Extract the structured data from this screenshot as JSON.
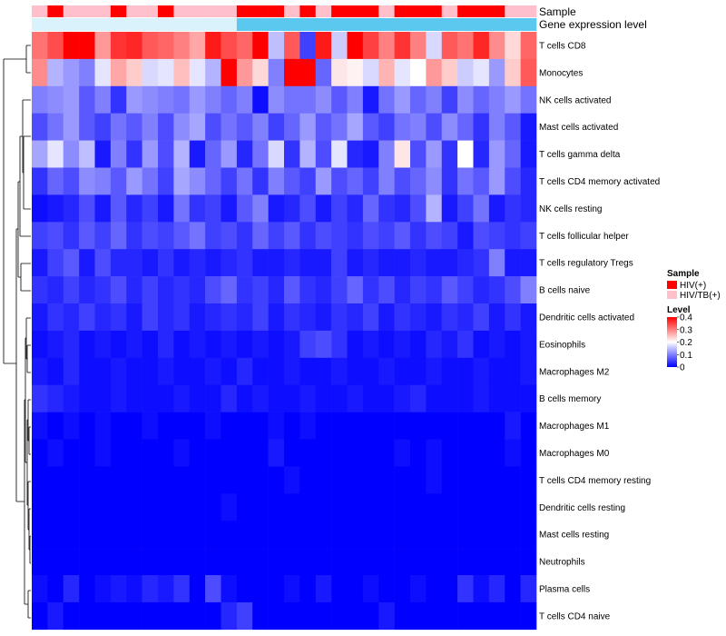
{
  "chart_data": {
    "type": "heatmap",
    "title": "",
    "n_samples": 32,
    "rows": [
      {
        "label": "T cells CD8",
        "values": [
          0.31,
          0.34,
          0.4,
          0.45,
          0.28,
          0.36,
          0.37,
          0.33,
          0.32,
          0.3,
          0.27,
          0.38,
          0.34,
          0.32,
          0.42,
          0.15,
          0.33,
          0.05,
          0.38,
          0.16,
          0.4,
          0.35,
          0.3,
          0.36,
          0.3,
          0.17,
          0.33,
          0.31,
          0.37,
          0.29,
          0.23,
          0.32
        ]
      },
      {
        "label": "Monocytes",
        "values": [
          0.29,
          0.14,
          0.12,
          0.1,
          0.18,
          0.27,
          0.24,
          0.17,
          0.18,
          0.25,
          0.18,
          0.14,
          0.4,
          0.28,
          0.23,
          0.1,
          0.42,
          0.4,
          0.08,
          0.22,
          0.21,
          0.17,
          0.26,
          0.18,
          0.2,
          0.28,
          0.24,
          0.16,
          0.18,
          0.12,
          0.24,
          0.33
        ]
      },
      {
        "label": "NK cells activated",
        "values": [
          0.1,
          0.11,
          0.12,
          0.07,
          0.1,
          0.04,
          0.12,
          0.11,
          0.1,
          0.09,
          0.12,
          0.1,
          0.08,
          0.1,
          0.01,
          0.11,
          0.09,
          0.09,
          0.11,
          0.07,
          0.1,
          0.02,
          0.09,
          0.12,
          0.08,
          0.1,
          0.05,
          0.11,
          0.08,
          0.1,
          0.12,
          0.09
        ]
      },
      {
        "label": "Mast cells activated",
        "values": [
          0.06,
          0.09,
          0.12,
          0.07,
          0.05,
          0.09,
          0.07,
          0.1,
          0.06,
          0.11,
          0.13,
          0.06,
          0.09,
          0.07,
          0.1,
          0.05,
          0.08,
          0.12,
          0.07,
          0.09,
          0.13,
          0.07,
          0.05,
          0.09,
          0.1,
          0.06,
          0.11,
          0.08,
          0.04,
          0.1,
          0.07,
          0.02
        ]
      },
      {
        "label": "T cells gamma delta",
        "values": [
          0.13,
          0.18,
          0.11,
          0.15,
          0.02,
          0.1,
          0.04,
          0.12,
          0.06,
          0.14,
          0.02,
          0.08,
          0.12,
          0.03,
          0.09,
          0.17,
          0.04,
          0.14,
          0.06,
          0.18,
          0.03,
          0.02,
          0.1,
          0.22,
          0.06,
          0.12,
          0.04,
          0.2,
          0.03,
          0.12,
          0.08,
          0.02
        ]
      },
      {
        "label": "T cells CD4 memory activated",
        "values": [
          0.04,
          0.08,
          0.06,
          0.11,
          0.1,
          0.07,
          0.12,
          0.09,
          0.05,
          0.13,
          0.11,
          0.08,
          0.05,
          0.09,
          0.04,
          0.1,
          0.07,
          0.05,
          0.12,
          0.06,
          0.08,
          0.05,
          0.1,
          0.06,
          0.08,
          0.11,
          0.04,
          0.09,
          0.07,
          0.12,
          0.06,
          0.03
        ]
      },
      {
        "label": "NK cells resting",
        "values": [
          0.01,
          0.02,
          0.03,
          0.06,
          0.02,
          0.07,
          0.03,
          0.05,
          0.02,
          0.09,
          0.04,
          0.05,
          0.02,
          0.07,
          0.1,
          0.02,
          0.03,
          0.06,
          0.02,
          0.05,
          0.03,
          0.08,
          0.04,
          0.03,
          0.06,
          0.14,
          0.02,
          0.05,
          0.09,
          0.02,
          0.04,
          0.03
        ]
      },
      {
        "label": "T cells follicular helper",
        "values": [
          0.05,
          0.06,
          0.04,
          0.07,
          0.05,
          0.08,
          0.04,
          0.06,
          0.05,
          0.07,
          0.09,
          0.05,
          0.06,
          0.04,
          0.08,
          0.05,
          0.07,
          0.04,
          0.06,
          0.05,
          0.04,
          0.06,
          0.05,
          0.07,
          0.04,
          0.06,
          0.05,
          0.02,
          0.06,
          0.05,
          0.04,
          0.05
        ]
      },
      {
        "label": "T cells regulatory  Tregs",
        "values": [
          0.02,
          0.05,
          0.07,
          0.02,
          0.06,
          0.03,
          0.03,
          0.02,
          0.04,
          0.02,
          0.03,
          0.02,
          0.03,
          0.04,
          0.02,
          0.02,
          0.03,
          0.02,
          0.02,
          0.05,
          0.02,
          0.03,
          0.02,
          0.02,
          0.03,
          0.02,
          0.02,
          0.03,
          0.04,
          0.1,
          0.02,
          0.02
        ]
      },
      {
        "label": "B cells naive",
        "values": [
          0.04,
          0.03,
          0.05,
          0.03,
          0.04,
          0.06,
          0.03,
          0.05,
          0.03,
          0.04,
          0.03,
          0.06,
          0.08,
          0.04,
          0.05,
          0.03,
          0.07,
          0.04,
          0.03,
          0.05,
          0.08,
          0.04,
          0.06,
          0.03,
          0.05,
          0.04,
          0.07,
          0.05,
          0.03,
          0.04,
          0.06,
          0.1
        ]
      },
      {
        "label": "Dendritic cells activated",
        "values": [
          0.02,
          0.04,
          0.03,
          0.05,
          0.03,
          0.04,
          0.02,
          0.05,
          0.03,
          0.04,
          0.02,
          0.03,
          0.04,
          0.03,
          0.05,
          0.02,
          0.04,
          0.03,
          0.02,
          0.04,
          0.03,
          0.05,
          0.02,
          0.04,
          0.03,
          0.02,
          0.04,
          0.03,
          0.05,
          0.02,
          0.04,
          0.02
        ]
      },
      {
        "label": "Eosinophils",
        "values": [
          0.01,
          0.02,
          0.03,
          0.01,
          0.02,
          0.01,
          0.02,
          0.01,
          0.03,
          0.01,
          0.02,
          0.01,
          0.02,
          0.01,
          0.02,
          0.01,
          0.02,
          0.05,
          0.06,
          0.04,
          0.01,
          0.02,
          0.01,
          0.02,
          0.01,
          0.03,
          0.02,
          0.04,
          0.01,
          0.02,
          0.01,
          0.02
        ]
      },
      {
        "label": "Macrophages M2",
        "values": [
          0.02,
          0.01,
          0.03,
          0.01,
          0.01,
          0.02,
          0.01,
          0.01,
          0.02,
          0.01,
          0.01,
          0.02,
          0.01,
          0.03,
          0.01,
          0.01,
          0.02,
          0.01,
          0.01,
          0.02,
          0.01,
          0.01,
          0.02,
          0.01,
          0.01,
          0.02,
          0.01,
          0.01,
          0.02,
          0.01,
          0.01,
          0.02
        ]
      },
      {
        "label": "B cells memory",
        "values": [
          0.04,
          0.03,
          0.02,
          0.01,
          0.01,
          0.02,
          0.01,
          0.01,
          0.01,
          0.02,
          0.01,
          0.01,
          0.03,
          0.01,
          0.02,
          0.01,
          0.01,
          0.02,
          0.01,
          0.01,
          0.02,
          0.01,
          0.01,
          0.02,
          0.03,
          0.01,
          0.01,
          0.01,
          0.02,
          0.01,
          0.01,
          0.01
        ]
      },
      {
        "label": "Macrophages M1",
        "values": [
          0.01,
          0.0,
          0.01,
          0.0,
          0.01,
          0.0,
          0.0,
          0.01,
          0.0,
          0.0,
          0.0,
          0.01,
          0.0,
          0.0,
          0.0,
          0.01,
          0.0,
          0.01,
          0.0,
          0.0,
          0.0,
          0.0,
          0.0,
          0.0,
          0.0,
          0.0,
          0.0,
          0.0,
          0.0,
          0.0,
          0.02,
          0.0
        ]
      },
      {
        "label": "Macrophages M0",
        "values": [
          0.0,
          0.01,
          0.0,
          0.0,
          0.01,
          0.0,
          0.0,
          0.0,
          0.0,
          0.01,
          0.0,
          0.0,
          0.0,
          0.0,
          0.0,
          0.02,
          0.0,
          0.0,
          0.0,
          0.0,
          0.0,
          0.0,
          0.0,
          0.01,
          0.0,
          0.01,
          0.0,
          0.0,
          0.0,
          0.0,
          0.01,
          0.0
        ]
      },
      {
        "label": "T cells CD4 memory resting",
        "values": [
          0.0,
          0.0,
          0.0,
          0.0,
          0.0,
          0.0,
          0.0,
          0.0,
          0.0,
          0.0,
          0.0,
          0.0,
          0.0,
          0.0,
          0.0,
          0.0,
          0.01,
          0.0,
          0.0,
          0.0,
          0.0,
          0.0,
          0.0,
          0.0,
          0.0,
          0.01,
          0.0,
          0.0,
          0.0,
          0.0,
          0.0,
          0.0
        ]
      },
      {
        "label": "Dendritic cells resting",
        "values": [
          0.0,
          0.0,
          0.0,
          0.0,
          0.0,
          0.0,
          0.0,
          0.0,
          0.0,
          0.0,
          0.0,
          0.0,
          0.01,
          0.0,
          0.0,
          0.0,
          0.0,
          0.0,
          0.0,
          0.0,
          0.0,
          0.0,
          0.0,
          0.0,
          0.0,
          0.0,
          0.0,
          0.0,
          0.0,
          0.0,
          0.0,
          0.0
        ]
      },
      {
        "label": "Mast cells resting",
        "values": [
          0.0,
          0.0,
          0.0,
          0.0,
          0.0,
          0.0,
          0.0,
          0.0,
          0.0,
          0.0,
          0.0,
          0.0,
          0.0,
          0.0,
          0.0,
          0.0,
          0.0,
          0.0,
          0.0,
          0.0,
          0.0,
          0.0,
          0.0,
          0.0,
          0.0,
          0.0,
          0.0,
          0.0,
          0.0,
          0.0,
          0.0,
          0.0
        ]
      },
      {
        "label": "Neutrophils",
        "values": [
          0.0,
          0.0,
          0.0,
          0.0,
          0.0,
          0.0,
          0.0,
          0.0,
          0.0,
          0.0,
          0.0,
          0.0,
          0.0,
          0.0,
          0.0,
          0.0,
          0.0,
          0.0,
          0.0,
          0.0,
          0.0,
          0.0,
          0.0,
          0.0,
          0.0,
          0.0,
          0.0,
          0.0,
          0.0,
          0.0,
          0.0,
          0.0
        ]
      },
      {
        "label": "Plasma cells",
        "values": [
          0.01,
          0.0,
          0.03,
          0.0,
          0.01,
          0.02,
          0.01,
          0.03,
          0.02,
          0.04,
          0.0,
          0.06,
          0.01,
          0.0,
          0.0,
          0.0,
          0.01,
          0.0,
          0.02,
          0.0,
          0.0,
          0.01,
          0.0,
          0.0,
          0.01,
          0.0,
          0.0,
          0.04,
          0.01,
          0.03,
          0.0,
          0.03
        ]
      },
      {
        "label": "T cells CD4 naive",
        "values": [
          0.0,
          0.02,
          0.0,
          0.0,
          0.0,
          0.0,
          0.0,
          0.0,
          0.0,
          0.0,
          0.0,
          0.0,
          0.03,
          0.05,
          0.0,
          0.0,
          0.0,
          0.0,
          0.0,
          0.0,
          0.0,
          0.0,
          0.02,
          0.0,
          0.0,
          0.0,
          0.0,
          0.0,
          0.0,
          0.0,
          0.0,
          0.0
        ]
      }
    ],
    "annotations": {
      "sample": {
        "label": "Sample",
        "values": [
          "HIV/TB(+)",
          "HIV(+)",
          "HIV/TB(+)",
          "HIV/TB(+)",
          "HIV/TB(+)",
          "HIV(+)",
          "HIV/TB(+)",
          "HIV/TB(+)",
          "HIV(+)",
          "HIV/TB(+)",
          "HIV/TB(+)",
          "HIV/TB(+)",
          "HIV/TB(+)",
          "HIV(+)",
          "HIV(+)",
          "HIV(+)",
          "HIV/TB(+)",
          "HIV(+)",
          "HIV/TB(+)",
          "HIV(+)",
          "HIV(+)",
          "HIV(+)",
          "HIV/TB(+)",
          "HIV(+)",
          "HIV(+)",
          "HIV(+)",
          "HIV/TB(+)",
          "HIV(+)",
          "HIV(+)",
          "HIV(+)",
          "HIV/TB(+)",
          "HIV/TB(+)"
        ]
      },
      "expression": {
        "label": "Gene expression level",
        "color": "#5bc8f0",
        "low_color": "#d9f2fb",
        "n_low": 13
      }
    },
    "legend": {
      "sample_title": "Sample",
      "sample_entries": [
        {
          "label": "HIV(+)",
          "color": "#ff0000"
        },
        {
          "label": "HIV/TB(+)",
          "color": "#ffc0cb"
        }
      ],
      "level_title": "Level",
      "level_ticks": [
        "0.4",
        "0.3",
        "0.2",
        "0.1",
        "0"
      ],
      "level_range": [
        0,
        0.4
      ],
      "colors": {
        "low": "#0000ff",
        "mid": "#ffffff",
        "high": "#ff0000"
      }
    }
  }
}
